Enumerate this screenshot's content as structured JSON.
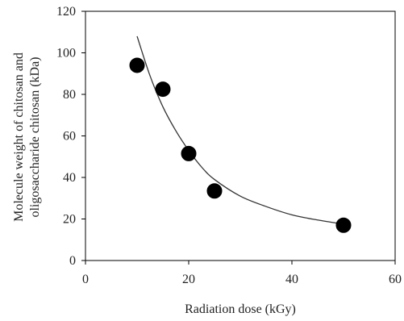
{
  "chart_data": {
    "type": "scatter",
    "title": "",
    "xlabel": "Radiation dose (kGy)",
    "ylabel_lines": [
      "Molecule weight of chitosan and",
      "oligosaccharide chitosan (kDa)"
    ],
    "xlim": [
      0,
      60
    ],
    "ylim": [
      0,
      120
    ],
    "xticks": [
      "0",
      "20",
      "40",
      "60"
    ],
    "yticks": [
      "0",
      "20",
      "40",
      "60",
      "80",
      "100",
      "120"
    ],
    "grid": false,
    "legend": "none",
    "series": [
      {
        "type": "scatter",
        "marker": "filled-circle",
        "x": [
          10,
          15,
          20,
          25,
          50
        ],
        "y": [
          94,
          82.5,
          51.5,
          33.5,
          17
        ]
      },
      {
        "type": "line",
        "style": "fitted-curve",
        "x": [
          10,
          12.5,
          15,
          17.5,
          20,
          22.5,
          25,
          30,
          35,
          40,
          45,
          50
        ],
        "y": [
          108,
          89,
          74,
          62.5,
          53,
          45,
          39,
          31,
          26,
          22,
          19.5,
          17.5
        ]
      }
    ],
    "colors": {
      "marker": "#000000",
      "curve": "#333333",
      "axis": "#000000",
      "text": "#222222"
    }
  }
}
